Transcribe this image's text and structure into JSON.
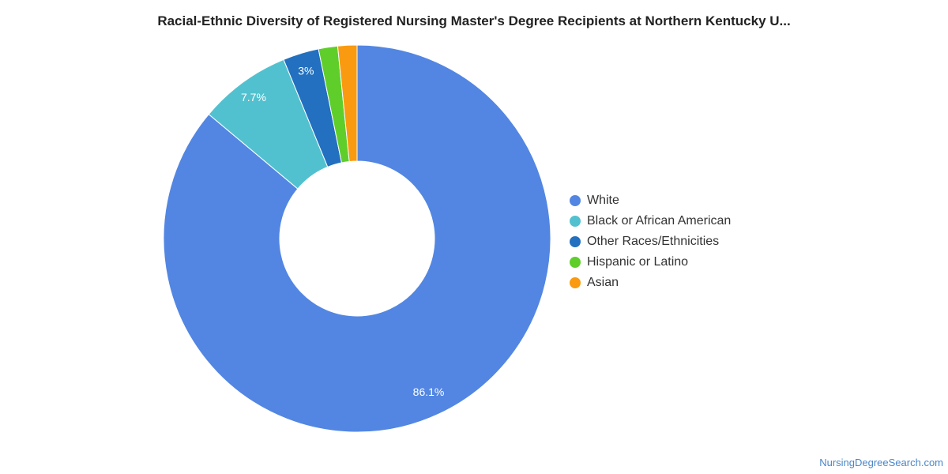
{
  "chart_data": {
    "type": "pie",
    "variant": "donut",
    "title": "Racial-Ethnic Diversity of Registered Nursing Master's Degree Recipients at Northern Kentucky U...",
    "legend_position": "right",
    "slices": [
      {
        "name": "White",
        "value": 86.1,
        "label": "86.1%",
        "color": "#5286e2"
      },
      {
        "name": "Black or African American",
        "value": 7.7,
        "label": "7.7%",
        "color": "#52c1cf"
      },
      {
        "name": "Other Races/Ethnicities",
        "value": 3.0,
        "label": "3%",
        "color": "#2270bf"
      },
      {
        "name": "Hispanic or Latino",
        "value": 1.6,
        "label": "",
        "color": "#5fce2b"
      },
      {
        "name": "Asian",
        "value": 1.6,
        "label": "",
        "color": "#f99a10"
      }
    ]
  },
  "footer": {
    "source": "NursingDegreeSearch.com"
  }
}
